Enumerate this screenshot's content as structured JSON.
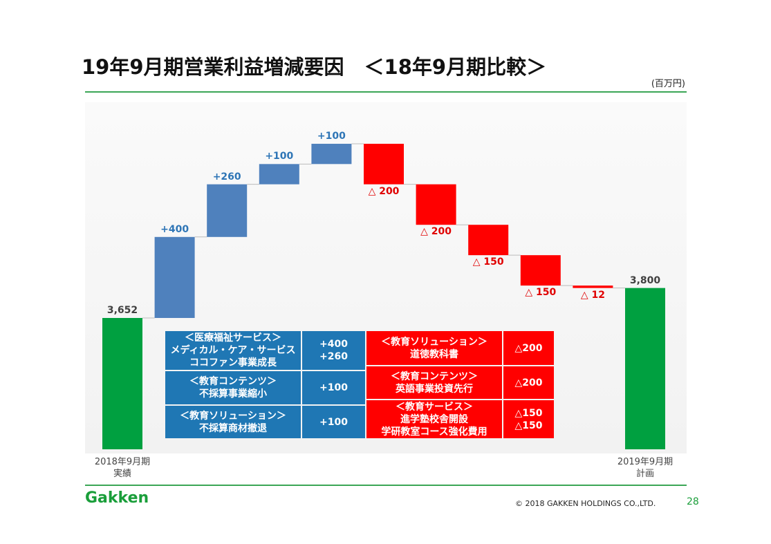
{
  "header": {
    "title": "19年9月期営業利益増減要因　＜18年9月期比較＞",
    "unit": "(百万円)"
  },
  "chart_data": {
    "type": "waterfall",
    "categories": [
      "2018年9月期\n実績",
      null,
      null,
      null,
      null,
      null,
      null,
      null,
      null,
      null,
      "2019年9月期\n計画"
    ],
    "values": [
      3652,
      400,
      260,
      100,
      100,
      -200,
      -200,
      -150,
      -150,
      -12,
      3800
    ],
    "value_labels": [
      "3,652",
      "+400",
      "+260",
      "+100",
      "+100",
      "△ 200",
      "△ 200",
      "△ 150",
      "△ 150",
      "△ 12",
      "3,800"
    ],
    "colors": [
      "#00a040",
      "#4f81bd",
      "#4f81bd",
      "#4f81bd",
      "#4f81bd",
      "#ff0000",
      "#ff0000",
      "#ff0000",
      "#ff0000",
      "#ff0000",
      "#00a040"
    ]
  },
  "tables": [
    {
      "color": "#1f77b4",
      "rows": [
        [
          "＜医療福祉サービス＞\nメディカル・ケア・サービス\nココファン事業成長",
          "+400\n+260"
        ],
        [
          "＜教育コンテンツ＞\n不採算事業縮小",
          "+100"
        ],
        [
          "＜教育ソリューション＞\n不採算商材撤退",
          "+100"
        ]
      ]
    },
    {
      "color": "#ff0000",
      "rows": [
        [
          "＜教育ソリューション＞\n道徳教科書",
          "△200"
        ],
        [
          "＜教育コンテンツ＞\n英語事業投資先行",
          "△200"
        ],
        [
          "＜教育サービス＞\n進学塾校舎開設\n学研教室コース強化費用",
          "△150\n△150"
        ]
      ]
    }
  ],
  "footer": {
    "logo": "Gakken",
    "copyright": "©  2018 GAKKEN HOLDINGS CO.,LTD.",
    "page": "28"
  }
}
